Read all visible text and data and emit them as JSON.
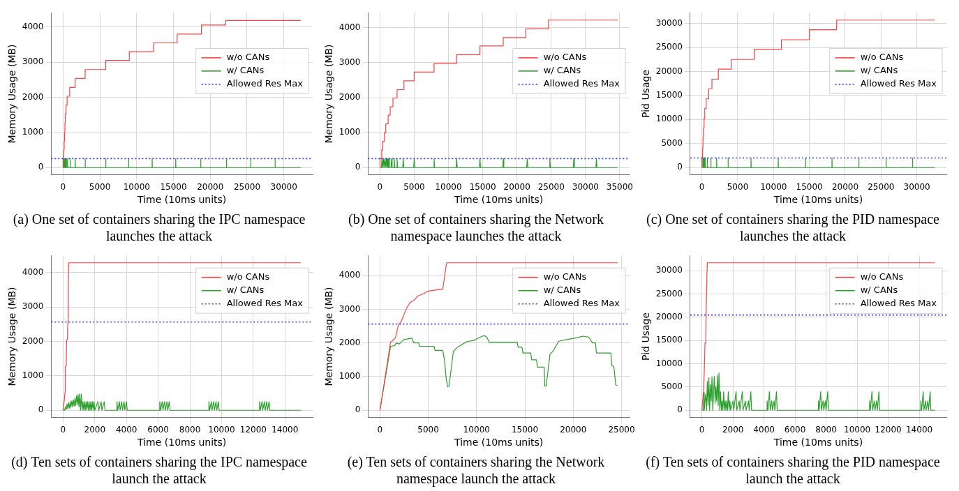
{
  "chart_data": [
    {
      "type": "line",
      "title": "(a) One set of containers sharing the IPC namespace launches the attack",
      "xlabel": "Time (10ms units)",
      "ylabel": "Memory Usage (MB)",
      "xlim": [
        -1615,
        33915
      ],
      "ylim": [
        -210,
        4410
      ],
      "xticks": [
        0,
        5000,
        10000,
        15000,
        20000,
        25000,
        30000
      ],
      "yticks": [
        0,
        1000,
        2000,
        3000,
        4000
      ],
      "grid": true,
      "legend": "right",
      "ref_lines": [
        {
          "axis": "y",
          "value": 256,
          "label": "Allowed Res Max",
          "color": "#3b3bff",
          "line_style": "dotted"
        }
      ],
      "series": [
        {
          "name": "w/o CANs",
          "type": "step",
          "color": "#ff4040",
          "x": [
            0,
            100,
            150,
            200,
            250,
            300,
            400,
            550,
            900,
            1650,
            3000,
            5800,
            9000,
            12300,
            15500,
            18800,
            22100,
            25400,
            32300
          ],
          "values": [
            0,
            250,
            500,
            750,
            1000,
            1280,
            1530,
            1780,
            2030,
            2280,
            2540,
            2790,
            3050,
            3300,
            3550,
            3800,
            4060,
            4190,
            4190
          ]
        },
        {
          "name": "w/ CANs",
          "type": "line",
          "color": "#2ca02c",
          "x": [
            0,
            100,
            100,
            130,
            170,
            170,
            200,
            240,
            240,
            270,
            310,
            310,
            340,
            380,
            380,
            410,
            450,
            450,
            480,
            600,
            600,
            630,
            950,
            950,
            980,
            1650,
            1650,
            1680,
            3000,
            3000,
            3030,
            5800,
            5800,
            5830,
            8900,
            8900,
            8930,
            12100,
            12100,
            12130,
            15300,
            15300,
            15330,
            18700,
            18700,
            18730,
            22200,
            22200,
            22230,
            25500,
            25500,
            25530,
            28800,
            28800,
            28830,
            32300
          ],
          "values": [
            0,
            0,
            250,
            0,
            0,
            250,
            0,
            0,
            250,
            0,
            0,
            250,
            0,
            0,
            250,
            0,
            0,
            250,
            0,
            0,
            250,
            0,
            0,
            250,
            0,
            0,
            250,
            0,
            0,
            250,
            0,
            0,
            250,
            0,
            0,
            250,
            0,
            0,
            250,
            0,
            0,
            250,
            0,
            0,
            250,
            0,
            0,
            250,
            0,
            0,
            250,
            0,
            0,
            250,
            0,
            0
          ]
        }
      ]
    },
    {
      "type": "line",
      "title": "(b) One set of containers sharing the Network namespace launches the attack",
      "xlabel": "Time (10ms units)",
      "ylabel": "Memory Usage (MB)",
      "xlim": [
        -1735,
        36435
      ],
      "ylim": [
        -211,
        4431
      ],
      "xticks": [
        0,
        5000,
        10000,
        15000,
        20000,
        25000,
        30000,
        35000
      ],
      "yticks": [
        0,
        1000,
        2000,
        3000,
        4000
      ],
      "grid": true,
      "legend": "right",
      "ref_lines": [
        {
          "axis": "y",
          "value": 256,
          "label": "Allowed Res Max",
          "color": "#3b3bff",
          "line_style": "dotted"
        }
      ],
      "series": [
        {
          "name": "w/o CANs",
          "type": "step",
          "color": "#ff4040",
          "x": [
            0,
            250,
            400,
            650,
            850,
            1200,
            1500,
            1900,
            2500,
            3500,
            5000,
            7900,
            11200,
            14600,
            18000,
            21300,
            24600,
            28200,
            34700
          ],
          "values": [
            0,
            250,
            500,
            750,
            1000,
            1250,
            1500,
            1740,
            1990,
            2230,
            2480,
            2730,
            2980,
            3230,
            3480,
            3720,
            3970,
            4220,
            4220
          ]
        },
        {
          "name": "w/ CANs",
          "type": "line",
          "color": "#2ca02c",
          "x": [
            0,
            220,
            300,
            380,
            420,
            500,
            580,
            620,
            700,
            780,
            820,
            900,
            980,
            1020,
            1100,
            1180,
            1220,
            1300,
            1380,
            1620,
            1700,
            1780,
            2020,
            2100,
            2180,
            2420,
            2500,
            2580,
            3320,
            3400,
            3480,
            4920,
            5000,
            5080,
            7820,
            7900,
            7980,
            11120,
            11200,
            11280,
            14520,
            14600,
            14680,
            17920,
            18000,
            18080,
            21420,
            21500,
            21580,
            24720,
            24800,
            24880,
            28220,
            28300,
            28380,
            31520,
            31600,
            31680,
            34700
          ],
          "values": [
            0,
            0,
            250,
            0,
            0,
            250,
            0,
            0,
            250,
            0,
            0,
            250,
            0,
            0,
            250,
            0,
            0,
            250,
            0,
            0,
            250,
            0,
            0,
            250,
            0,
            0,
            250,
            0,
            0,
            250,
            0,
            0,
            250,
            0,
            0,
            250,
            0,
            0,
            250,
            0,
            0,
            250,
            0,
            0,
            250,
            0,
            0,
            250,
            0,
            0,
            250,
            0,
            0,
            250,
            0,
            0,
            250,
            0,
            0
          ]
        }
      ]
    },
    {
      "type": "line",
      "title": "(c) One set of containers sharing the PID namespace launches the attack",
      "xlabel": "Time (10ms units)",
      "ylabel": "Pid Usage",
      "xlim": [
        -1625,
        34125
      ],
      "ylim": [
        -1535,
        32235
      ],
      "xticks": [
        0,
        5000,
        10000,
        15000,
        20000,
        25000,
        30000
      ],
      "yticks": [
        0,
        5000,
        10000,
        15000,
        20000,
        25000,
        30000
      ],
      "grid": true,
      "legend": "right",
      "ref_lines": [
        {
          "axis": "y",
          "value": 2000,
          "label": "Allowed Res Max",
          "color": "#3b3bff",
          "line_style": "dotted"
        }
      ],
      "series": [
        {
          "name": "w/o CANs",
          "type": "step",
          "color": "#ff4040",
          "x": [
            0,
            100,
            150,
            200,
            300,
            400,
            600,
            950,
            1400,
            2300,
            4100,
            7300,
            11100,
            15000,
            18800,
            22500,
            32500
          ],
          "values": [
            0,
            2000,
            4100,
            6100,
            8200,
            10200,
            12300,
            14300,
            16400,
            18400,
            20500,
            22500,
            24600,
            26600,
            28700,
            30700,
            30700
          ]
        },
        {
          "name": "w/ CANs",
          "type": "line",
          "color": "#2ca02c",
          "x": [
            0,
            100,
            100,
            130,
            170,
            170,
            200,
            240,
            240,
            270,
            310,
            310,
            340,
            380,
            380,
            410,
            450,
            450,
            480,
            750,
            750,
            780,
            1250,
            1250,
            1280,
            2050,
            2050,
            2080,
            3650,
            3650,
            3680,
            6850,
            6850,
            6880,
            10650,
            10650,
            10680,
            14450,
            14450,
            14480,
            18150,
            18150,
            18180,
            21900,
            21900,
            21930,
            25700,
            25700,
            25730,
            29400,
            29400,
            29430,
            32500
          ],
          "values": [
            0,
            0,
            2000,
            0,
            0,
            2000,
            0,
            0,
            2000,
            0,
            0,
            2000,
            0,
            0,
            2000,
            0,
            0,
            2000,
            0,
            0,
            2000,
            0,
            0,
            2000,
            0,
            0,
            2000,
            0,
            0,
            2000,
            0,
            0,
            2000,
            0,
            0,
            2000,
            0,
            0,
            2000,
            0,
            0,
            2000,
            0,
            0,
            2000,
            0,
            0,
            2000,
            0,
            0,
            2000,
            0,
            0
          ]
        }
      ]
    },
    {
      "type": "line",
      "title": "(d) Ten sets of containers sharing the IPC namespace launch the attack",
      "xlabel": "Time (10ms units)",
      "ylabel": "Memory Usage (MB)",
      "xlim": [
        -750,
        15750
      ],
      "ylim": [
        -214,
        4494
      ],
      "xticks": [
        0,
        2000,
        4000,
        6000,
        8000,
        10000,
        12000,
        14000
      ],
      "yticks": [
        0,
        1000,
        2000,
        3000,
        4000
      ],
      "grid": true,
      "legend": "top right",
      "ref_lines": [
        {
          "axis": "y",
          "value": 2560,
          "label": "Allowed Res Max",
          "color": "#3b3bff",
          "line_style": "dotted"
        }
      ],
      "series": [
        {
          "name": "w/o CANs",
          "type": "line",
          "color": "#ff4040",
          "x": [
            0,
            80,
            120,
            140,
            200,
            220,
            250,
            280,
            300,
            330,
            350,
            15000
          ],
          "values": [
            0,
            300,
            520,
            1270,
            1280,
            2030,
            2050,
            2290,
            2540,
            3560,
            4280,
            4280
          ]
        },
        {
          "name": "w/ CANs",
          "type": "line",
          "color": "#2ca02c",
          "x": [
            0,
            50,
            100,
            150,
            200,
            250,
            300,
            350,
            400,
            450,
            500,
            550,
            600,
            650,
            700,
            750,
            800,
            850,
            900,
            950,
            1000,
            1050,
            1100,
            1150,
            1200,
            1250,
            1300,
            1350,
            1400,
            1450,
            1500,
            1550,
            1600,
            1650,
            1700,
            1750,
            1800,
            1850,
            1900,
            1950,
            2000,
            2200,
            2250,
            2400,
            2450,
            2600,
            2650,
            3400,
            3400,
            3450,
            3550,
            3600,
            3700,
            3750,
            3850,
            3900,
            4000,
            4050,
            6100,
            6100,
            6150,
            6250,
            6300,
            6400,
            6450,
            6550,
            6600,
            6700,
            6750,
            9200,
            9200,
            9250,
            9350,
            9400,
            9500,
            9550,
            9650,
            9700,
            9800,
            9850,
            12400,
            12400,
            12450,
            12550,
            12600,
            12700,
            12750,
            12850,
            12900,
            13000,
            13050,
            15000
          ],
          "values": [
            0,
            30,
            0,
            100,
            20,
            180,
            40,
            220,
            60,
            250,
            80,
            270,
            100,
            300,
            120,
            350,
            140,
            420,
            160,
            460,
            100,
            480,
            0,
            470,
            0,
            250,
            0,
            250,
            0,
            250,
            0,
            250,
            0,
            250,
            0,
            250,
            0,
            250,
            0,
            250,
            0,
            250,
            0,
            250,
            0,
            250,
            0,
            0,
            250,
            0,
            250,
            0,
            250,
            0,
            250,
            0,
            250,
            0,
            0,
            250,
            0,
            250,
            0,
            250,
            0,
            250,
            0,
            250,
            0,
            0,
            250,
            0,
            250,
            0,
            250,
            0,
            250,
            0,
            250,
            0,
            0,
            250,
            0,
            250,
            0,
            250,
            0,
            250,
            0,
            250,
            0,
            0
          ]
        }
      ]
    },
    {
      "type": "line",
      "title": "(e) Ten sets of containers sharing the Network namespace launch the attack",
      "xlabel": "Time (10ms units)",
      "ylabel": "Memory Usage (MB)",
      "xlim": [
        -1230,
        25830
      ],
      "ylim": [
        -219,
        4599
      ],
      "xticks": [
        0,
        5000,
        10000,
        15000,
        20000,
        25000
      ],
      "yticks": [
        0,
        1000,
        2000,
        3000,
        4000
      ],
      "grid": true,
      "legend": "top right",
      "ref_lines": [
        {
          "axis": "y",
          "value": 2560,
          "label": "Allowed Res Max",
          "color": "#3b3bff",
          "line_style": "dotted"
        }
      ],
      "series": [
        {
          "name": "w/o CANs",
          "type": "line",
          "color": "#ff4040",
          "x": [
            0,
            1100,
            1300,
            1600,
            1900,
            2200,
            2500,
            2800,
            3100,
            3500,
            3900,
            4500,
            5000,
            6500,
            6900,
            24600
          ],
          "values": [
            0,
            2030,
            2060,
            2150,
            2530,
            2640,
            2850,
            3050,
            3200,
            3260,
            3390,
            3460,
            3540,
            3600,
            4380,
            4380
          ]
        },
        {
          "name": "w/ CANs",
          "type": "line",
          "color": "#2ca02c",
          "x": [
            0,
            1100,
            1500,
            1700,
            2000,
            2500,
            3300,
            3500,
            4000,
            4100,
            5600,
            5700,
            6500,
            6700,
            6850,
            7000,
            7150,
            7600,
            8000,
            8500,
            9000,
            9800,
            10200,
            10800,
            11100,
            11300,
            14200,
            14300,
            14700,
            14800,
            15600,
            15700,
            16200,
            16300,
            17000,
            17050,
            17200,
            17600,
            17900,
            18200,
            18500,
            19500,
            20500,
            21000,
            21600,
            22000,
            22300,
            22400,
            23900,
            24000,
            24200,
            24400,
            24600
          ],
          "values": [
            0,
            1900,
            1920,
            2000,
            1970,
            2100,
            2140,
            2000,
            2000,
            1900,
            1900,
            1780,
            1780,
            1450,
            950,
            700,
            720,
            1750,
            1870,
            1950,
            2040,
            2080,
            2150,
            2220,
            2150,
            2020,
            2020,
            1870,
            1870,
            1700,
            1700,
            1500,
            1500,
            1280,
            1280,
            720,
            720,
            1670,
            1750,
            1900,
            2050,
            2110,
            2160,
            2200,
            2170,
            2000,
            2000,
            1700,
            1700,
            1320,
            1310,
            750,
            740
          ]
        }
      ]
    },
    {
      "type": "line",
      "title": "(f) Ten sets of containers sharing the PID namespace launch the attack",
      "xlabel": "Time (10ms units)",
      "ylabel": "Pid Usage",
      "xlim": [
        -750,
        15750
      ],
      "ylim": [
        -1585,
        33285
      ],
      "xticks": [
        0,
        2000,
        4000,
        6000,
        8000,
        10000,
        12000,
        14000
      ],
      "yticks": [
        0,
        5000,
        10000,
        15000,
        20000,
        25000,
        30000
      ],
      "grid": true,
      "legend": "top right",
      "ref_lines": [
        {
          "axis": "y",
          "value": 20480,
          "label": "Allowed Res Max",
          "color": "#3b3bff",
          "line_style": "dotted"
        }
      ],
      "series": [
        {
          "name": "w/o CANs",
          "type": "line",
          "color": "#ff4040",
          "x": [
            0,
            100,
            150,
            200,
            250,
            300,
            320,
            350,
            15000
          ],
          "values": [
            0,
            4000,
            8000,
            14500,
            14500,
            26700,
            28700,
            31700,
            31700
          ]
        },
        {
          "name": "w/ CANs",
          "type": "line",
          "color": "#2ca02c",
          "x": [
            0,
            100,
            120,
            150,
            200,
            250,
            300,
            350,
            400,
            450,
            500,
            550,
            600,
            650,
            700,
            750,
            800,
            850,
            900,
            950,
            1000,
            1050,
            1100,
            1150,
            1200,
            1250,
            1300,
            1350,
            1400,
            1450,
            1500,
            1550,
            1600,
            1650,
            1700,
            1750,
            1800,
            1850,
            2000,
            2050,
            2200,
            2250,
            2400,
            2450,
            2600,
            2650,
            2800,
            2850,
            3000,
            3050,
            3150,
            3200,
            4200,
            4200,
            4250,
            4350,
            4400,
            4500,
            4550,
            4650,
            4700,
            4800,
            4850,
            7500,
            7500,
            7550,
            7650,
            7700,
            7800,
            7850,
            7950,
            8000,
            8100,
            8150,
            10800,
            10800,
            10850,
            10950,
            11000,
            11100,
            11150,
            11250,
            11300,
            11400,
            11450,
            14100,
            14100,
            14150,
            14250,
            14300,
            14400,
            14450,
            14550,
            14600,
            14700,
            14750,
            15000
          ],
          "values": [
            0,
            0,
            3800,
            0,
            2000,
            3500,
            0,
            6200,
            1000,
            7000,
            0,
            5500,
            2000,
            7200,
            0,
            4000,
            7300,
            1500,
            5000,
            2000,
            7500,
            1000,
            8000,
            0,
            4000,
            0,
            2000,
            0,
            4000,
            0,
            2000,
            0,
            2000,
            0,
            4000,
            0,
            2000,
            0,
            2000,
            0,
            4000,
            0,
            2000,
            0,
            4000,
            0,
            2000,
            0,
            2000,
            0,
            4000,
            0,
            0,
            2000,
            0,
            4000,
            0,
            2000,
            0,
            2000,
            0,
            4000,
            0,
            0,
            2000,
            0,
            4000,
            0,
            2000,
            0,
            2000,
            0,
            4000,
            0,
            0,
            2000,
            0,
            4000,
            0,
            2000,
            0,
            2000,
            0,
            4000,
            0,
            0,
            2000,
            0,
            4000,
            0,
            2000,
            0,
            2000,
            0,
            4000,
            0,
            0
          ]
        }
      ]
    }
  ]
}
